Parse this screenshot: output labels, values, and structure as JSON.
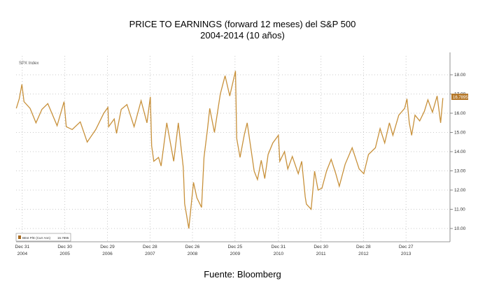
{
  "title_line1": "PRICE TO EARNINGS (forward 12 meses) del S&P 500",
  "title_line2": "2004-2014  (10 años)",
  "footer": "Fuente: Bloomberg",
  "chart_data": {
    "type": "line",
    "index_label": "SPX Index",
    "legend": {
      "label": "BEst P/E (Curr Ann)",
      "value": "16.7895",
      "placement": "bottom-left"
    },
    "last_value_label": "16.7895",
    "ylim": [
      9.4,
      18.9
    ],
    "yticks": [
      "10.00",
      "11.00",
      "12.00",
      "13.00",
      "14.00",
      "15.00",
      "16.00",
      "17.00",
      "18.00"
    ],
    "xticks": [
      {
        "date": "2004-12-31",
        "l1": "Dec 31",
        "l2": "2004"
      },
      {
        "date": "2005-12-30",
        "l1": "Dec 30",
        "l2": "2005"
      },
      {
        "date": "2006-12-29",
        "l1": "Dec 29",
        "l2": "2006"
      },
      {
        "date": "2007-12-28",
        "l1": "Dec 28",
        "l2": "2007"
      },
      {
        "date": "2008-12-26",
        "l1": "Dec 26",
        "l2": "2008"
      },
      {
        "date": "2009-12-25",
        "l1": "Dec 25",
        "l2": "2009"
      },
      {
        "date": "2010-12-31",
        "l1": "Dec 31",
        "l2": "2010"
      },
      {
        "date": "2011-12-30",
        "l1": "Dec 30",
        "l2": "2011"
      },
      {
        "date": "2012-12-28",
        "l1": "Dec 28",
        "l2": "2012"
      },
      {
        "date": "2013-12-27",
        "l1": "Dec 27",
        "l2": "2013"
      }
    ],
    "grid": true,
    "y_axis_side": "right",
    "line_color": "#c8913b",
    "series": [
      {
        "x": [
          "2004-11-10",
          "2004-12-05",
          "2004-12-28",
          "2005-01-15",
          "2005-03-08",
          "2005-04-27",
          "2005-06-17",
          "2005-08-06",
          "2005-10-25",
          "2005-12-23",
          "2006-01-11",
          "2006-03-03",
          "2006-05-11",
          "2006-07-09",
          "2006-09-20",
          "2006-11-28",
          "2007-01-02",
          "2007-01-08",
          "2007-02-25",
          "2007-03-17",
          "2007-04-26",
          "2007-06-14",
          "2007-08-14",
          "2007-10-13",
          "2007-12-02",
          "2007-12-31",
          "2008-01-11",
          "2008-01-30",
          "2008-03-10",
          "2008-04-01",
          "2008-05-20",
          "2008-07-18",
          "2008-08-27",
          "2008-10-08",
          "2008-10-12",
          "2008-10-20",
          "2008-11-25",
          "2009-01-04",
          "2009-02-02",
          "2009-03-14",
          "2009-04-04",
          "2009-05-03",
          "2009-05-23",
          "2009-07-02",
          "2009-08-21",
          "2009-10-01",
          "2009-11-10",
          "2009-12-29",
          "2010-01-08",
          "2010-02-06",
          "2010-03-15",
          "2010-04-08",
          "2010-06-07",
          "2010-07-05",
          "2010-08-06",
          "2010-09-05",
          "2010-10-04",
          "2010-11-13",
          "2010-12-31",
          "2011-01-12",
          "2011-02-21",
          "2011-03-21",
          "2011-04-29",
          "2011-06-19",
          "2011-07-18",
          "2011-08-17",
          "2011-08-27",
          "2011-10-07",
          "2011-11-05",
          "2011-12-05",
          "2012-01-07",
          "2012-02-16",
          "2012-03-26",
          "2012-05-05",
          "2012-06-04",
          "2012-07-24",
          "2012-09-22",
          "2012-11-21",
          "2012-12-31",
          "2013-02-09",
          "2013-04-09",
          "2013-05-19",
          "2013-06-28",
          "2013-08-07",
          "2013-09-06",
          "2013-10-26",
          "2013-12-15",
          "2014-01-04",
          "2014-01-24",
          "2014-02-13",
          "2014-03-14",
          "2014-04-23",
          "2014-06-02",
          "2014-07-02",
          "2014-08-10",
          "2014-09-19",
          "2014-10-19",
          "2014-11-07"
        ],
        "y": [
          16.25,
          16.75,
          17.5,
          16.6,
          16.25,
          15.5,
          16.2,
          16.5,
          15.35,
          16.6,
          15.3,
          15.15,
          15.55,
          14.5,
          15.15,
          16.0,
          16.3,
          15.3,
          15.7,
          14.95,
          16.2,
          16.45,
          15.3,
          16.65,
          15.5,
          16.85,
          14.3,
          13.5,
          13.7,
          13.25,
          15.5,
          13.5,
          15.5,
          13.2,
          12.6,
          11.3,
          10.0,
          12.4,
          11.6,
          11.1,
          13.7,
          15.15,
          16.25,
          15.0,
          17.0,
          17.95,
          16.9,
          18.2,
          14.7,
          13.7,
          14.9,
          15.5,
          12.98,
          12.55,
          13.55,
          12.6,
          13.85,
          14.45,
          14.85,
          13.5,
          14.0,
          13.1,
          13.75,
          12.85,
          13.5,
          11.65,
          11.27,
          11.0,
          12.98,
          12.0,
          12.1,
          13.0,
          13.6,
          12.85,
          12.2,
          13.35,
          14.2,
          13.1,
          12.85,
          13.85,
          14.2,
          15.2,
          14.45,
          15.5,
          14.85,
          15.9,
          16.25,
          16.75,
          15.5,
          14.85,
          15.9,
          15.6,
          16.1,
          16.7,
          16.05,
          16.9,
          15.5,
          16.79
        ]
      }
    ]
  }
}
